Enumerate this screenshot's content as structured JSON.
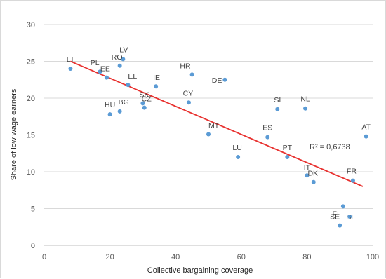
{
  "chart_data": {
    "type": "scatter",
    "title": "",
    "xlabel": "Collective bargaining coverage",
    "ylabel": "Share of low wage earners",
    "xlim": [
      0,
      100
    ],
    "ylim": [
      0,
      30
    ],
    "x_ticks": [
      "0",
      "20",
      "40",
      "60",
      "80",
      "100"
    ],
    "y_ticks": [
      "0",
      "5",
      "10",
      "15",
      "20",
      "25",
      "30"
    ],
    "grid": "horizontal",
    "legend": "none",
    "marker_color": "#5b9bd5",
    "trendline_color": "#e8312f",
    "trendline": {
      "type": "linear",
      "from": [
        8,
        25
      ],
      "to": [
        97,
        8
      ],
      "r2_label": "R² = 0,6738"
    },
    "points": [
      {
        "label": "LT",
        "x": 8,
        "y": 24
      },
      {
        "label": "PL",
        "x": 17,
        "y": 23.6
      },
      {
        "label": "EE",
        "x": 19,
        "y": 22.8
      },
      {
        "label": "RO",
        "x": 23,
        "y": 24.4
      },
      {
        "label": "LV",
        "x": 24,
        "y": 25.3
      },
      {
        "label": "EL",
        "x": 25.5,
        "y": 21.8
      },
      {
        "label": "IE",
        "x": 34,
        "y": 21.6
      },
      {
        "label": "HU",
        "x": 20,
        "y": 17.8
      },
      {
        "label": "BG",
        "x": 23,
        "y": 18.2
      },
      {
        "label": "SK",
        "x": 30,
        "y": 19.3
      },
      {
        "label": "CZ",
        "x": 30.5,
        "y": 18.7
      },
      {
        "label": "HR",
        "x": 45,
        "y": 23.2
      },
      {
        "label": "DE",
        "x": 55,
        "y": 22.5
      },
      {
        "label": "CY",
        "x": 44,
        "y": 19.4
      },
      {
        "label": "MT",
        "x": 50,
        "y": 15.1
      },
      {
        "label": "LU",
        "x": 59,
        "y": 12
      },
      {
        "label": "ES",
        "x": 68,
        "y": 14.7
      },
      {
        "label": "SI",
        "x": 71,
        "y": 18.5
      },
      {
        "label": "NL",
        "x": 79.5,
        "y": 18.6
      },
      {
        "label": "PT",
        "x": 74,
        "y": 12
      },
      {
        "label": "IT",
        "x": 80,
        "y": 9.5
      },
      {
        "label": "DK",
        "x": 82,
        "y": 8.6
      },
      {
        "label": "FR",
        "x": 94,
        "y": 8.8
      },
      {
        "label": "FI",
        "x": 91,
        "y": 5.3
      },
      {
        "label": "BE",
        "x": 93,
        "y": 3.9
      },
      {
        "label": "SE",
        "x": 90,
        "y": 2.7
      },
      {
        "label": "AT",
        "x": 98,
        "y": 14.8
      }
    ]
  }
}
